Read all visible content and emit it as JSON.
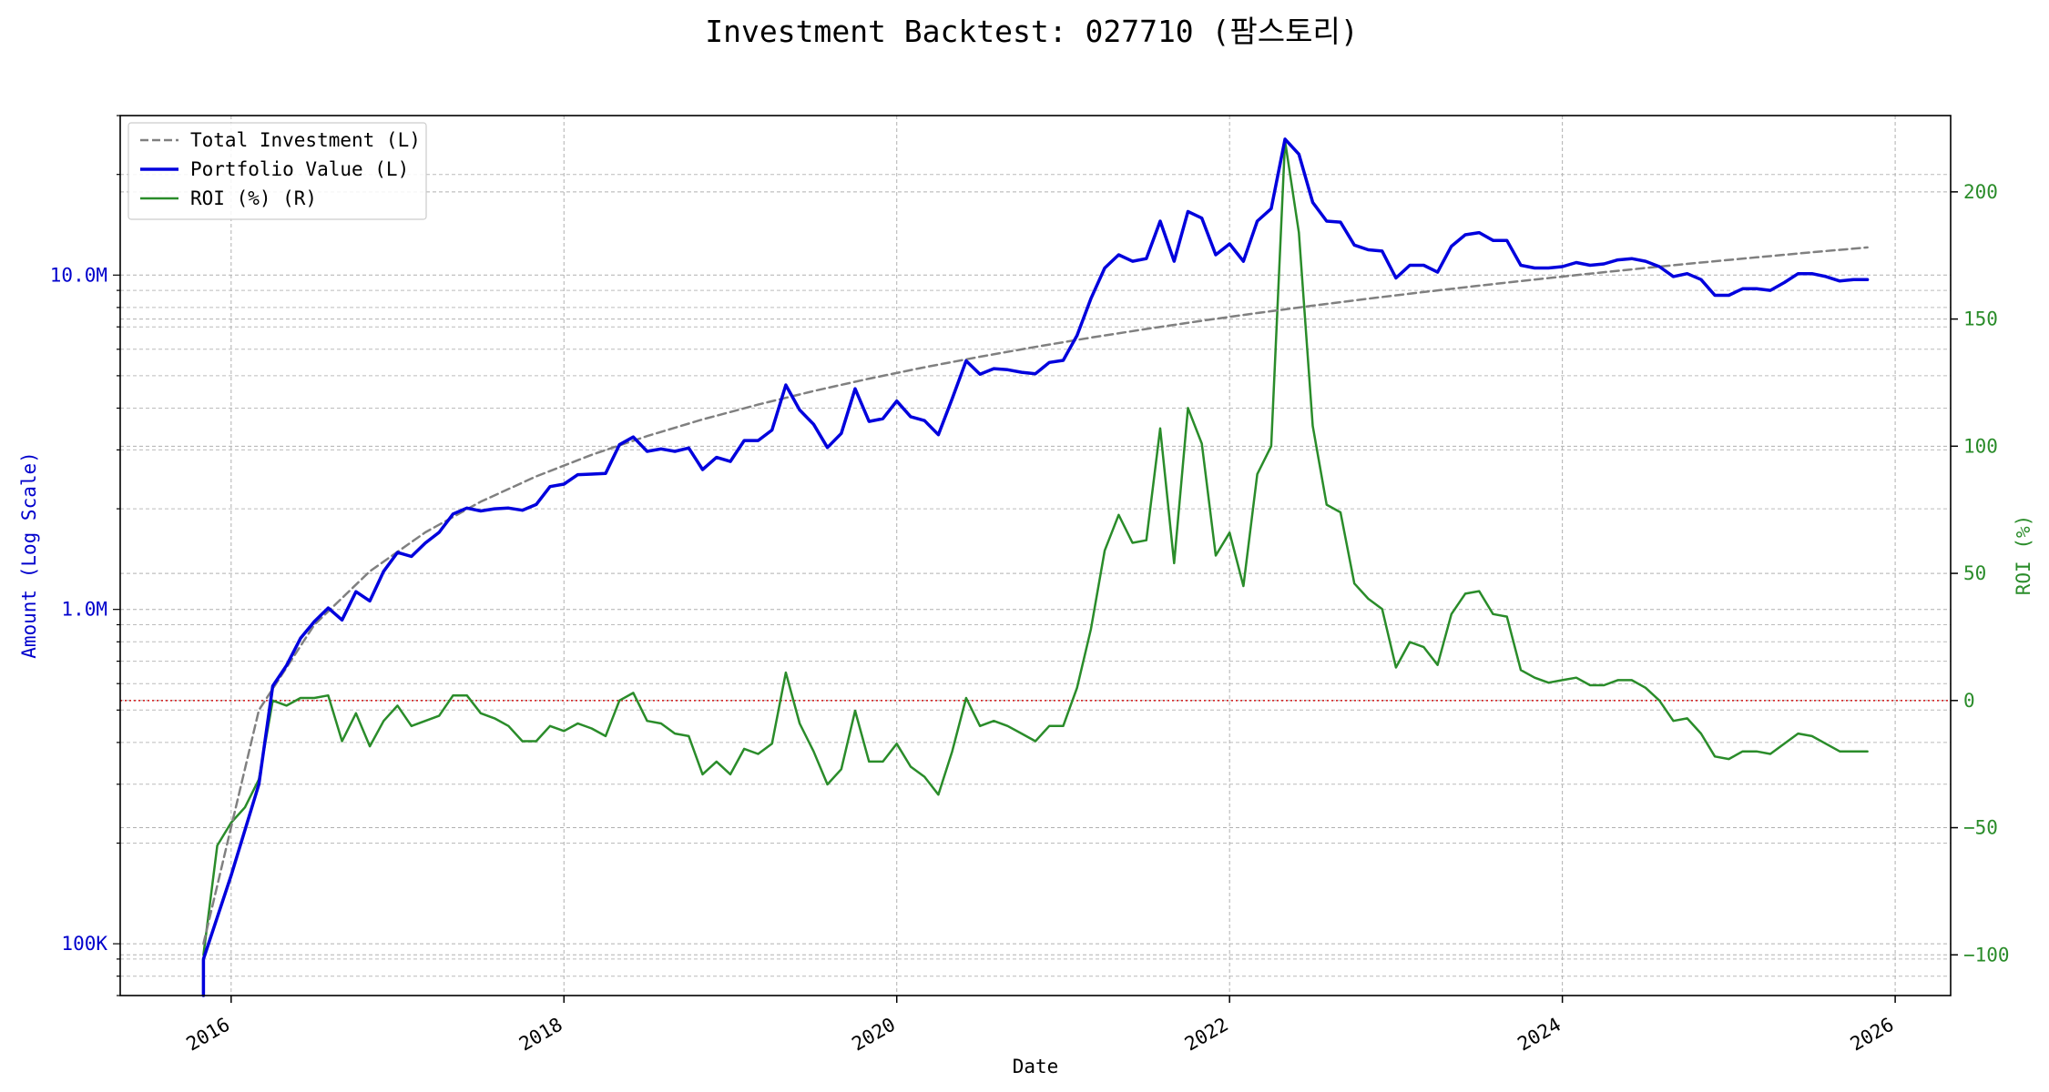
{
  "chart_data": {
    "type": "line",
    "title": "Investment Backtest: 027710 (팜스토리)",
    "xlabel": "Date",
    "ylabel_left": "Amount (Log Scale)",
    "ylabel_right": "ROI (%)",
    "y_left_scale": "log",
    "y_left_range": [
      70000,
      30000000
    ],
    "y_left_ticks": [
      {
        "value": 100000,
        "label": "100K"
      },
      {
        "value": 1000000,
        "label": "1.0M"
      },
      {
        "value": 10000000,
        "label": "10.0M"
      }
    ],
    "y_right_range": [
      -116,
      230
    ],
    "y_right_ticks": [
      {
        "value": -100,
        "label": "−100"
      },
      {
        "value": -50,
        "label": "−50"
      },
      {
        "value": 0,
        "label": "0"
      },
      {
        "value": 50,
        "label": "50"
      },
      {
        "value": 100,
        "label": "100"
      },
      {
        "value": 150,
        "label": "150"
      },
      {
        "value": 200,
        "label": "200"
      }
    ],
    "x_range": [
      "2015-05-01",
      "2026-05-01"
    ],
    "x_ticks": [
      "2016",
      "2018",
      "2020",
      "2022",
      "2024",
      "2026"
    ],
    "grid": true,
    "legend_position": "top-left",
    "zero_line": {
      "value": 0,
      "color": "#d62728"
    },
    "series": [
      {
        "name": "Total Investment (L)",
        "axis": "left",
        "color": "#808080",
        "style": "dashed",
        "x": [
          "2015-11",
          "2016-03",
          "2016-07",
          "2016-11",
          "2017-03",
          "2017-07",
          "2017-11",
          "2018-03",
          "2018-07",
          "2018-11",
          "2019-03",
          "2019-07",
          "2019-11",
          "2020-03",
          "2020-07",
          "2020-11",
          "2021-03",
          "2021-07",
          "2021-11",
          "2022-03",
          "2022-07",
          "2022-11",
          "2023-03",
          "2023-07",
          "2023-11",
          "2024-03",
          "2024-07",
          "2024-11",
          "2025-03",
          "2025-07",
          "2025-11"
        ],
        "values": [
          100000,
          500000,
          900000,
          1300000,
          1700000,
          2100000,
          2500000,
          2900000,
          3300000,
          3700000,
          4100000,
          4500000,
          4900000,
          5300000,
          5700000,
          6100000,
          6500000,
          6900000,
          7300000,
          7700000,
          8100000,
          8500000,
          8900000,
          9300000,
          9700000,
          10100000,
          10500000,
          10900000,
          11300000,
          11700000,
          12100000
        ]
      },
      {
        "name": "Portfolio Value (L)",
        "axis": "left",
        "color": "#0000dd",
        "style": "solid",
        "x": [
          "2015-11",
          "2015-11",
          "2016-01",
          "2016-03",
          "2016-04",
          "2016-05",
          "2016-06",
          "2016-07",
          "2016-08",
          "2016-09",
          "2016-10",
          "2016-11",
          "2016-12",
          "2017-01",
          "2017-02",
          "2017-03",
          "2017-04",
          "2017-05",
          "2017-06",
          "2017-07",
          "2017-08",
          "2017-09",
          "2017-10",
          "2017-11",
          "2017-12",
          "2018-01",
          "2018-02",
          "2018-03",
          "2018-04",
          "2018-05",
          "2018-06",
          "2018-07",
          "2018-08",
          "2018-09",
          "2018-10",
          "2018-11",
          "2018-12",
          "2019-01",
          "2019-02",
          "2019-03",
          "2019-04",
          "2019-05",
          "2019-06",
          "2019-07",
          "2019-08",
          "2019-09",
          "2019-10",
          "2019-11",
          "2019-12",
          "2020-01",
          "2020-02",
          "2020-03",
          "2020-04",
          "2020-05",
          "2020-06",
          "2020-07",
          "2020-08",
          "2020-09",
          "2020-10",
          "2020-11",
          "2020-12",
          "2021-01",
          "2021-02",
          "2021-03",
          "2021-04",
          "2021-05",
          "2021-06",
          "2021-07",
          "2021-08",
          "2021-09",
          "2021-10",
          "2021-11",
          "2021-12",
          "2022-01",
          "2022-02",
          "2022-03",
          "2022-04",
          "2022-05",
          "2022-06",
          "2022-07",
          "2022-08",
          "2022-09",
          "2022-10",
          "2022-11",
          "2022-12",
          "2023-01",
          "2023-02",
          "2023-03",
          "2023-04",
          "2023-05",
          "2023-06",
          "2023-07",
          "2023-08",
          "2023-09",
          "2023-10",
          "2023-11",
          "2023-12",
          "2024-01",
          "2024-02",
          "2024-03",
          "2024-04",
          "2024-05",
          "2024-06",
          "2024-07",
          "2024-08",
          "2024-09",
          "2024-10",
          "2024-11",
          "2024-12",
          "2025-01",
          "2025-02",
          "2025-03",
          "2025-04",
          "2025-05",
          "2025-06",
          "2025-07",
          "2025-08",
          "2025-09",
          "2025-10",
          "2025-11"
        ],
        "values": [
          60000,
          90000,
          160000,
          300000,
          590000,
          680000,
          820000,
          920000,
          1010000,
          930000,
          1130000,
          1060000,
          1300000,
          1480000,
          1440000,
          1580000,
          1700000,
          1930000,
          2010000,
          1970000,
          2000000,
          2010000,
          1980000,
          2060000,
          2330000,
          2370000,
          2530000,
          2540000,
          2550000,
          3110000,
          3280000,
          2970000,
          3020000,
          2970000,
          3040000,
          2620000,
          2850000,
          2770000,
          3200000,
          3200000,
          3440000,
          4690000,
          3950000,
          3580000,
          3050000,
          3360000,
          4570000,
          3650000,
          3720000,
          4200000,
          3770000,
          3670000,
          3330000,
          4270000,
          5540000,
          5050000,
          5250000,
          5210000,
          5120000,
          5070000,
          5480000,
          5560000,
          6600000,
          8500000,
          10500000,
          11500000,
          11000000,
          11200000,
          14500000,
          11000000,
          15500000,
          14800000,
          11500000,
          12400000,
          11000000,
          14500000,
          15800000,
          25500000,
          23000000,
          16500000,
          14500000,
          14400000,
          12300000,
          11900000,
          11800000,
          9800000,
          10700000,
          10700000,
          10200000,
          12200000,
          13200000,
          13400000,
          12700000,
          12700000,
          10700000,
          10500000,
          10500000,
          10600000,
          10900000,
          10700000,
          10800000,
          11100000,
          11200000,
          11000000,
          10600000,
          9900000,
          10100000,
          9700000,
          8700000,
          8700000,
          9100000,
          9100000,
          9000000,
          9500000,
          10100000,
          10100000,
          9900000,
          9600000,
          9700000,
          9700000
        ]
      },
      {
        "name": "ROI (%) (R)",
        "axis": "right",
        "color": "#2a8c2a",
        "style": "solid",
        "x": [
          "2015-11",
          "2015-12",
          "2016-01",
          "2016-02",
          "2016-03",
          "2016-04",
          "2016-05",
          "2016-06",
          "2016-07",
          "2016-08",
          "2016-09",
          "2016-10",
          "2016-11",
          "2016-12",
          "2017-01",
          "2017-02",
          "2017-03",
          "2017-04",
          "2017-05",
          "2017-06",
          "2017-07",
          "2017-08",
          "2017-09",
          "2017-10",
          "2017-11",
          "2017-12",
          "2018-01",
          "2018-02",
          "2018-03",
          "2018-04",
          "2018-05",
          "2018-06",
          "2018-07",
          "2018-08",
          "2018-09",
          "2018-10",
          "2018-11",
          "2018-12",
          "2019-01",
          "2019-02",
          "2019-03",
          "2019-04",
          "2019-05",
          "2019-06",
          "2019-07",
          "2019-08",
          "2019-09",
          "2019-10",
          "2019-11",
          "2019-12",
          "2020-01",
          "2020-02",
          "2020-03",
          "2020-04",
          "2020-05",
          "2020-06",
          "2020-07",
          "2020-08",
          "2020-09",
          "2020-10",
          "2020-11",
          "2020-12",
          "2021-01",
          "2021-02",
          "2021-03",
          "2021-04",
          "2021-05",
          "2021-06",
          "2021-07",
          "2021-08",
          "2021-09",
          "2021-10",
          "2021-11",
          "2021-12",
          "2022-01",
          "2022-02",
          "2022-03",
          "2022-04",
          "2022-05",
          "2022-06",
          "2022-07",
          "2022-08",
          "2022-09",
          "2022-10",
          "2022-11",
          "2022-12",
          "2023-01",
          "2023-02",
          "2023-03",
          "2023-04",
          "2023-05",
          "2023-06",
          "2023-07",
          "2023-08",
          "2023-09",
          "2023-10",
          "2023-11",
          "2023-12",
          "2024-01",
          "2024-02",
          "2024-03",
          "2024-04",
          "2024-05",
          "2024-06",
          "2024-07",
          "2024-08",
          "2024-09",
          "2024-10",
          "2024-11",
          "2024-12",
          "2025-01",
          "2025-02",
          "2025-03",
          "2025-04",
          "2025-05",
          "2025-06",
          "2025-07",
          "2025-08",
          "2025-09",
          "2025-10",
          "2025-11"
        ],
        "values": [
          -100,
          -57,
          -48,
          -42,
          -31,
          0,
          -2,
          1,
          1,
          2,
          -16,
          -5,
          -18,
          -8,
          -2,
          -10,
          -8,
          -6,
          2,
          2,
          -5,
          -7,
          -10,
          -16,
          -16,
          -10,
          -12,
          -9,
          -11,
          -14,
          0,
          3,
          -8,
          -9,
          -13,
          -14,
          -29,
          -24,
          -29,
          -19,
          -21,
          -17,
          11,
          -9,
          -20,
          -33,
          -27,
          -4,
          -24,
          -24,
          -17,
          -26,
          -30,
          -37,
          -20,
          1,
          -10,
          -8,
          -10,
          -13,
          -16,
          -10,
          -10,
          5,
          28,
          59,
          73,
          62,
          63,
          107,
          54,
          115,
          101,
          57,
          66,
          45,
          89,
          100,
          220,
          184,
          108,
          77,
          74,
          46,
          40,
          36,
          13,
          23,
          21,
          14,
          34,
          42,
          43,
          34,
          33,
          12,
          9,
          7,
          8,
          9,
          6,
          6,
          8,
          8,
          5,
          0,
          -8,
          -7,
          -13,
          -22,
          -23,
          -20,
          -20,
          -21,
          -17,
          -13,
          -14,
          -17,
          -20,
          -20,
          -20
        ]
      }
    ]
  }
}
